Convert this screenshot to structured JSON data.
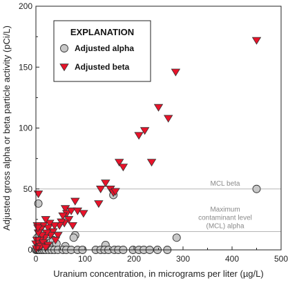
{
  "chart_data": {
    "type": "scatter",
    "xlabel": "Uranium concentration, in micrograms per liter (µg/L)",
    "ylabel": "Adjusted gross alpha or beta particle activity (pCi/L)",
    "xlim": [
      0,
      500
    ],
    "ylim": [
      0,
      200
    ],
    "xticks": [
      "0",
      "100",
      "200",
      "300",
      "400",
      "500"
    ],
    "yticks": [
      "0",
      "50",
      "100",
      "150",
      "200"
    ],
    "legend": {
      "title": "EXPLANATION",
      "placement": "top-left",
      "entries": [
        "Adjusted alpha",
        "Adjusted beta"
      ]
    },
    "reference_lines": [
      {
        "y": 50,
        "label_lines": [
          "MCL beta"
        ]
      },
      {
        "y": 15,
        "label_lines": [
          "Maximum",
          "contaminant level",
          "(MCL) alpha"
        ]
      }
    ],
    "series": [
      {
        "name": "Adjusted alpha",
        "marker": "circle",
        "color": "#c8c8c8",
        "points": [
          [
            450,
            50
          ],
          [
            158,
            45
          ],
          [
            5,
            38
          ],
          [
            287,
            10
          ],
          [
            80,
            12
          ],
          [
            77,
            10
          ],
          [
            142,
            4
          ],
          [
            60,
            3
          ],
          [
            3,
            10
          ],
          [
            10,
            8
          ],
          [
            15,
            5
          ],
          [
            25,
            7
          ],
          [
            30,
            6
          ],
          [
            35,
            8
          ],
          [
            42,
            5
          ],
          [
            0,
            0
          ],
          [
            2,
            0
          ],
          [
            4,
            0
          ],
          [
            6,
            0
          ],
          [
            8,
            0
          ],
          [
            12,
            0
          ],
          [
            16,
            0
          ],
          [
            20,
            0
          ],
          [
            26,
            0
          ],
          [
            32,
            0
          ],
          [
            38,
            0
          ],
          [
            45,
            0
          ],
          [
            55,
            0
          ],
          [
            62,
            0
          ],
          [
            72,
            0
          ],
          [
            85,
            0
          ],
          [
            95,
            0
          ],
          [
            122,
            0
          ],
          [
            132,
            0
          ],
          [
            140,
            0
          ],
          [
            148,
            0
          ],
          [
            160,
            0
          ],
          [
            168,
            0
          ],
          [
            178,
            0
          ],
          [
            198,
            0
          ],
          [
            210,
            0
          ],
          [
            220,
            0
          ],
          [
            232,
            0
          ],
          [
            248,
            0
          ],
          [
            268,
            0
          ]
        ]
      },
      {
        "name": "Adjusted beta",
        "marker": "triangle-down",
        "color": "#e8132a",
        "points": [
          [
            450,
            172
          ],
          [
            285,
            146
          ],
          [
            250,
            117
          ],
          [
            270,
            108
          ],
          [
            222,
            98
          ],
          [
            210,
            94
          ],
          [
            236,
            72
          ],
          [
            170,
            72
          ],
          [
            178,
            68
          ],
          [
            142,
            55
          ],
          [
            132,
            50
          ],
          [
            152,
            50
          ],
          [
            158,
            47
          ],
          [
            162,
            48
          ],
          [
            128,
            38
          ],
          [
            5,
            46
          ],
          [
            80,
            40
          ],
          [
            60,
            34
          ],
          [
            63,
            30
          ],
          [
            72,
            32
          ],
          [
            85,
            32
          ],
          [
            97,
            30
          ],
          [
            55,
            28
          ],
          [
            67,
            25
          ],
          [
            58,
            22
          ],
          [
            75,
            20
          ],
          [
            52,
            23
          ],
          [
            48,
            20
          ],
          [
            38,
            20
          ],
          [
            28,
            22
          ],
          [
            20,
            25
          ],
          [
            25,
            18
          ],
          [
            15,
            20
          ],
          [
            10,
            17
          ],
          [
            3,
            20
          ],
          [
            35,
            15
          ],
          [
            30,
            12
          ],
          [
            22,
            14
          ],
          [
            18,
            10
          ],
          [
            12,
            12
          ],
          [
            8,
            8
          ],
          [
            5,
            14
          ],
          [
            2,
            8
          ],
          [
            0,
            5
          ],
          [
            15,
            6
          ],
          [
            25,
            4
          ],
          [
            45,
            12
          ],
          [
            40,
            8
          ],
          [
            6,
            2
          ],
          [
            10,
            3
          ],
          [
            20,
            2
          ],
          [
            1,
            1
          ],
          [
            4,
            18
          ]
        ]
      }
    ]
  }
}
